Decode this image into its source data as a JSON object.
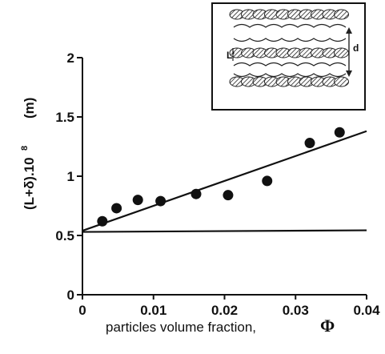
{
  "chart_data": {
    "type": "scatter",
    "xlabel": "particles volume fraction,",
    "xlabel_symbol": "Φ",
    "ylabel": "(L+δ).10",
    "ylabel_exponent": "8",
    "ylabel_unit": "(m)",
    "xlim": [
      0,
      0.04
    ],
    "ylim": [
      0,
      2
    ],
    "x_ticks": [
      0,
      0.01,
      0.02,
      0.03,
      0.04
    ],
    "x_tick_labels": [
      "0",
      "0.01",
      "0.02",
      "0.03",
      "0.04"
    ],
    "y_ticks": [
      0,
      0.5,
      1,
      1.5,
      2
    ],
    "y_tick_labels": [
      "0",
      "0.5",
      "1",
      "1.5",
      "2"
    ],
    "grid": false,
    "series": [
      {
        "x": [
          0.0028,
          0.0048,
          0.0078,
          0.011,
          0.016,
          0.0205,
          0.026,
          0.032,
          0.0362
        ],
        "y": [
          0.62,
          0.73,
          0.8,
          0.79,
          0.85,
          0.84,
          0.96,
          1.28,
          1.37
        ]
      }
    ],
    "fit_line": {
      "x": [
        0,
        0.04
      ],
      "y": [
        0.54,
        1.38
      ]
    },
    "horizontal_line": {
      "y": 0.53
    },
    "inset": {
      "labels": {
        "L_prime": "L'",
        "d": "d"
      }
    }
  }
}
